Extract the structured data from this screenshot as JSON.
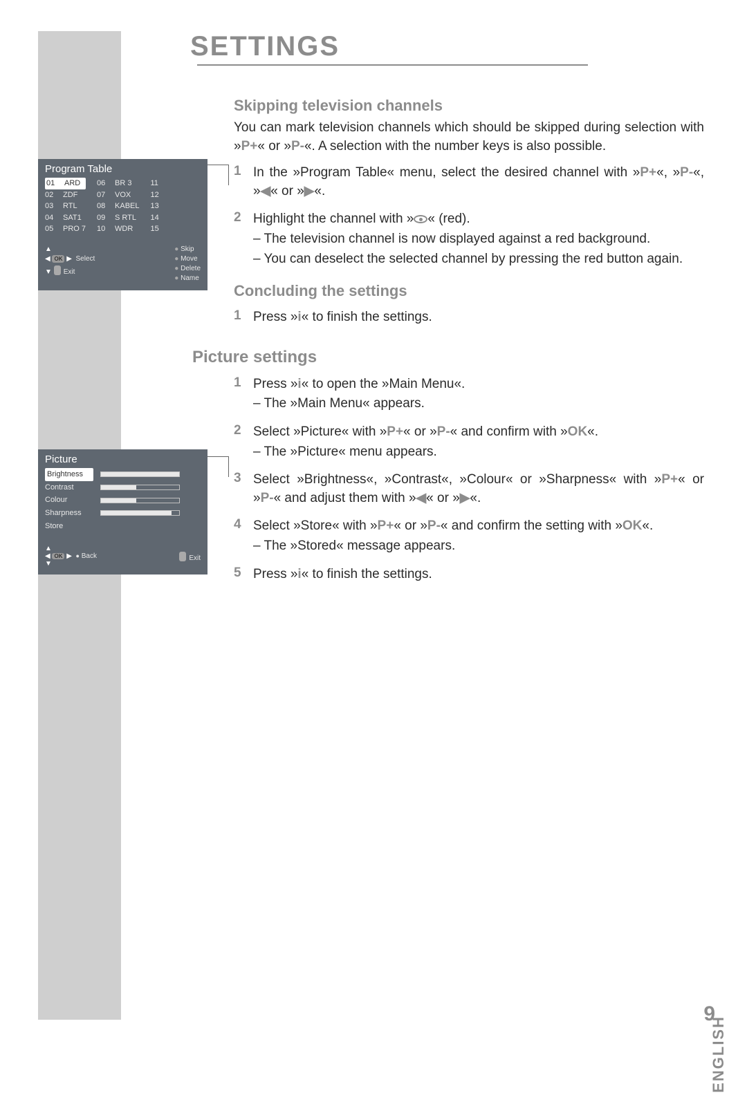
{
  "page": {
    "title": "SETTINGS",
    "side_label": "ENGLISH",
    "page_number": "9"
  },
  "sections": {
    "skip": {
      "heading": "Skipping television channels",
      "intro": "You can mark television channels which should be skipped during selection with »P+« or »P-«. A selection with the number keys is also possible.",
      "step1": "In the »Program Table« menu, select the desired channel with »P+«, »P-«, »◀« or »▶«.",
      "step2_a": "Highlight the channel with »      « (red).",
      "step2_b1": "– The television channel is now displayed against a red background.",
      "step2_b2": "– You can deselect the selected channel by pressing the red button again."
    },
    "conclude": {
      "heading": "Concluding the settings",
      "step1": "Press »i« to finish the settings."
    },
    "picture": {
      "heading": "Picture settings",
      "step1_a": "Press »i« to open the »Main Menu«.",
      "step1_b": "– The »Main Menu« appears.",
      "step2_a": "Select »Picture« with »P+« or »P-« and confirm with »OK«.",
      "step2_b": "– The »Picture« menu appears.",
      "step3": "Select »Brightness«, »Contrast«, »Colour« or »Sharpness« with »P+« or »P-« and adjust them with »◀« or »▶«.",
      "step4_a": "Select »Store« with »P+« or »P-« and confirm the setting with »OK«.",
      "step4_b": "– The »Stored« message appears.",
      "step5": "Press »i« to finish the settings."
    }
  },
  "tv_program_table": {
    "title": "Program Table",
    "bg_color": "#5f6770",
    "text_color": "#e8e8e8",
    "col1": [
      {
        "n": "01",
        "name": "ARD",
        "sel": true
      },
      {
        "n": "02",
        "name": "ZDF"
      },
      {
        "n": "03",
        "name": "RTL"
      },
      {
        "n": "04",
        "name": "SAT1"
      },
      {
        "n": "05",
        "name": "PRO 7"
      }
    ],
    "col2": [
      {
        "n": "06",
        "name": "BR 3"
      },
      {
        "n": "07",
        "name": "VOX"
      },
      {
        "n": "08",
        "name": "KABEL"
      },
      {
        "n": "09",
        "name": "S RTL"
      },
      {
        "n": "10",
        "name": "WDR"
      }
    ],
    "col3": [
      {
        "n": "11"
      },
      {
        "n": "12"
      },
      {
        "n": "13"
      },
      {
        "n": "14"
      },
      {
        "n": "15"
      }
    ],
    "legend_left": {
      "select": "Select",
      "exit": "Exit"
    },
    "legend_right": [
      "Skip",
      "Move",
      "Delete",
      "Name"
    ]
  },
  "tv_picture": {
    "title": "Picture",
    "rows": [
      {
        "label": "Brightness",
        "pct": 100,
        "sel": true
      },
      {
        "label": "Contrast",
        "pct": 45
      },
      {
        "label": "Colour",
        "pct": 45
      },
      {
        "label": "Sharpness",
        "pct": 90
      },
      {
        "label": "Store",
        "pct": null
      }
    ],
    "footer": {
      "back": "Back",
      "exit": "Exit"
    }
  },
  "colors": {
    "grey_stripe": "#cfcfcf",
    "heading": "#8c8c8c",
    "body": "#2b2b2b",
    "tv_bg": "#5f6770"
  }
}
